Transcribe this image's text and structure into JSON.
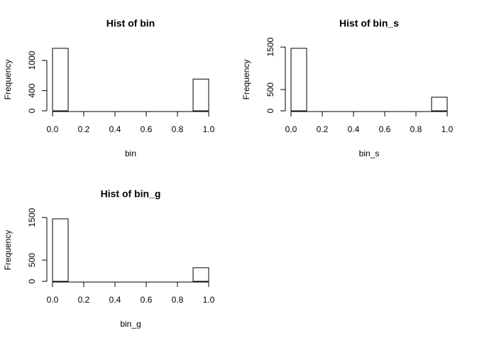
{
  "chart_data": [
    {
      "type": "histogram",
      "title": "Hist of bin",
      "xlabel": "bin",
      "ylabel": "Frequency",
      "bins": [
        0,
        0.1,
        0.2,
        0.3,
        0.4,
        0.5,
        0.6,
        0.7,
        0.8,
        0.9,
        1
      ],
      "values": [
        1240,
        0,
        0,
        0,
        0,
        0,
        0,
        0,
        0,
        630
      ],
      "color": "#ffffff",
      "xlim": [
        0,
        1
      ],
      "ylim": [
        0,
        1240
      ],
      "xticks": [
        {
          "value": 0,
          "label": "0.0"
        },
        0.2,
        0.4,
        0.6,
        0.8,
        {
          "value": 1,
          "label": "1.0"
        }
      ],
      "yticks": [
        0,
        400,
        1000
      ]
    },
    {
      "type": "histogram",
      "title": "Hist of bin_s",
      "xlabel": "bin_s",
      "ylabel": "Frequency",
      "bins": [
        0,
        0.1,
        0.2,
        0.3,
        0.4,
        0.5,
        0.6,
        0.7,
        0.8,
        0.9,
        1
      ],
      "values": [
        1470,
        0,
        0,
        0,
        0,
        0,
        0,
        0,
        0,
        320
      ],
      "color": "#ffffff",
      "xlim": [
        0,
        1
      ],
      "ylim": [
        0,
        1470
      ],
      "xticks": [
        {
          "value": 0,
          "label": "0.0"
        },
        0.2,
        0.4,
        0.6,
        0.8,
        {
          "value": 1,
          "label": "1.0"
        }
      ],
      "yticks": [
        0,
        500,
        1500
      ]
    },
    {
      "type": "histogram",
      "title": "Hist of bin_g",
      "xlabel": "bin_g",
      "ylabel": "Frequency",
      "bins": [
        0,
        0.1,
        0.2,
        0.3,
        0.4,
        0.5,
        0.6,
        0.7,
        0.8,
        0.9,
        1
      ],
      "values": [
        1470,
        0,
        0,
        0,
        0,
        0,
        0,
        0,
        0,
        320
      ],
      "color": "#ffffff",
      "xlim": [
        0,
        1
      ],
      "ylim": [
        0,
        1470
      ],
      "xticks": [
        {
          "value": 0,
          "label": "0.0"
        },
        0.2,
        0.4,
        0.6,
        0.8,
        {
          "value": 1,
          "label": "1.0"
        }
      ],
      "yticks": [
        0,
        500,
        1500
      ]
    }
  ]
}
